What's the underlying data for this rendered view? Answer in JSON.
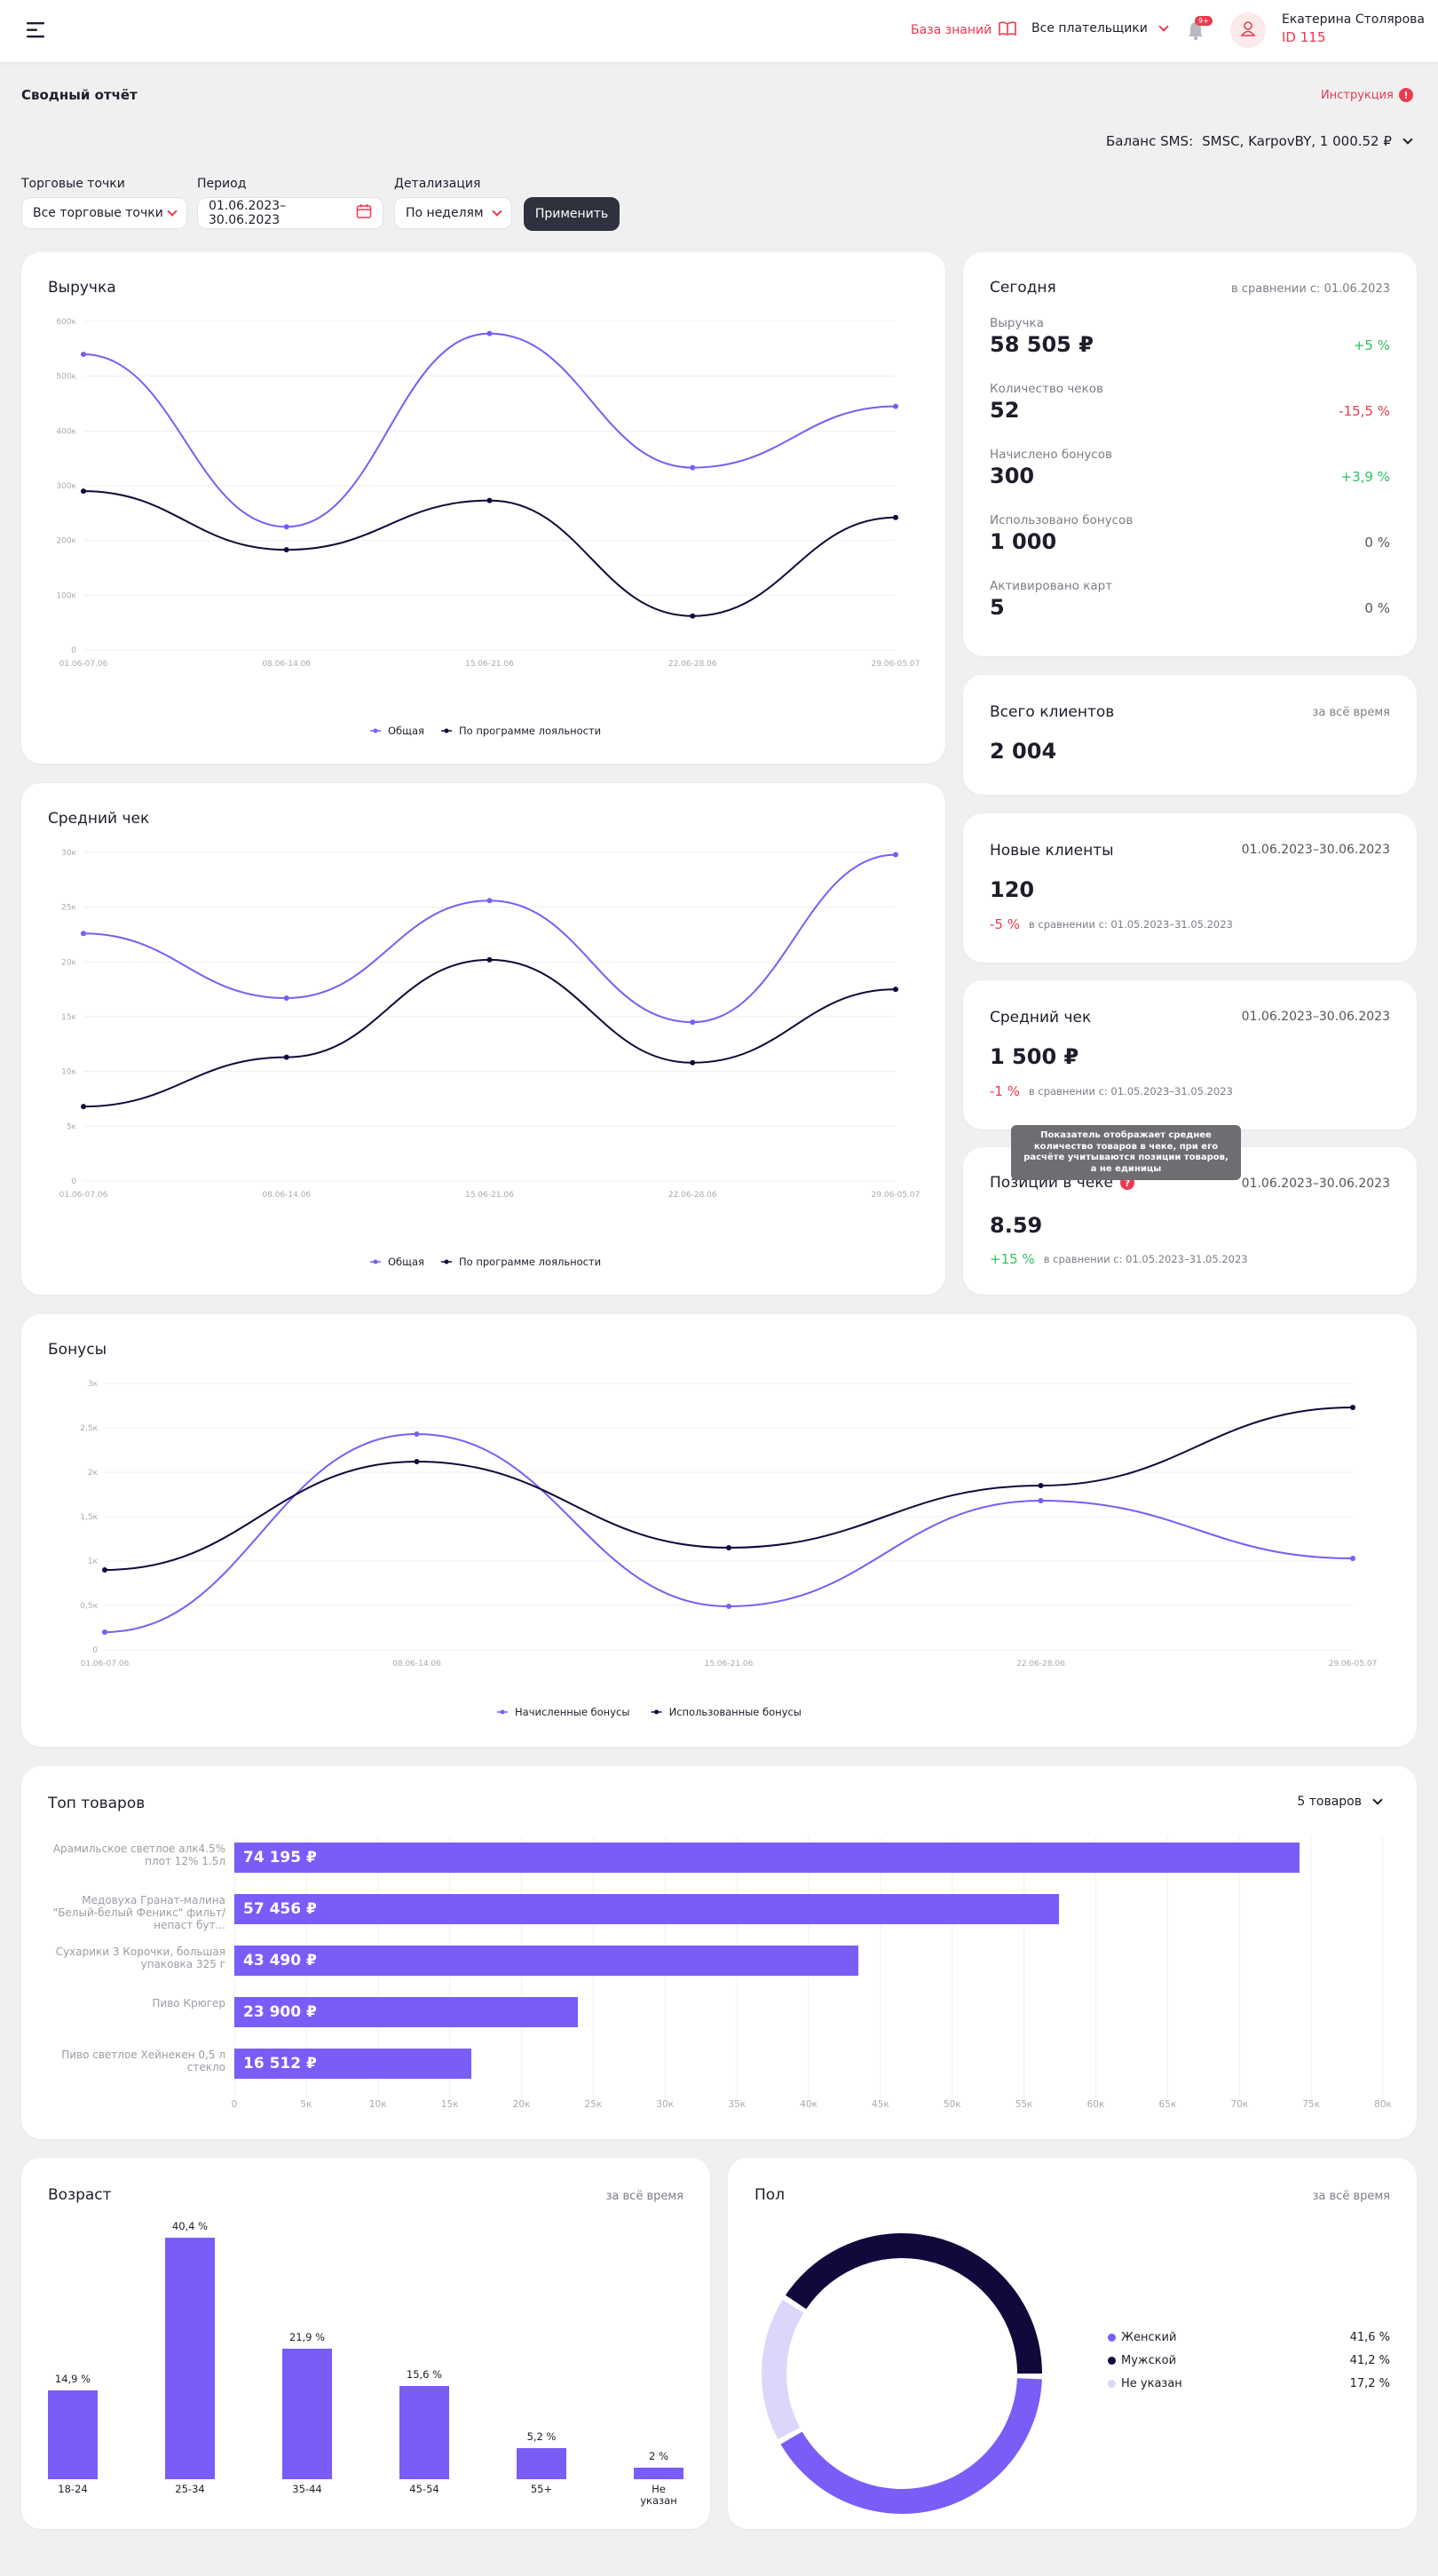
{
  "header": {
    "knowledge_base": "База знаний",
    "payers": "Все плательщики",
    "notif_badge": "9+",
    "user_name": "Екатерина Столярова",
    "user_id": "ID 115"
  },
  "page": {
    "title": "Сводный отчёт",
    "instruction": "Инструкция",
    "sms_label": "Баланс SMS:",
    "sms_value": "SMSC, KarpovBY, 1 000.52 ₽"
  },
  "filters": {
    "points_label": "Торговые точки",
    "points_value": "Все торговые точки",
    "period_label": "Период",
    "period_value": "01.06.2023–30.06.2023",
    "detail_label": "Детализация",
    "detail_value": "По неделям",
    "apply": "Применить"
  },
  "charts_text": {
    "revenue_title": "Выручка",
    "avg_title": "Средний чек",
    "bonus_title": "Бонусы",
    "legend_total": "Общая",
    "legend_loyalty": "По программе лояльности",
    "legend_accrued": "Начисленные бонусы",
    "legend_used": "Использованные бонусы"
  },
  "colors": {
    "accent": "#7a5cf7",
    "dark": "#11093b",
    "red": "#ea3a4e",
    "green": "#2fbf5f",
    "light": "#dcd6fb"
  },
  "today": {
    "title": "Сегодня",
    "compare": "в сравнении с: 01.06.2023",
    "stats": [
      {
        "label": "Выручка",
        "value": "58 505 ₽",
        "delta": "+5 %",
        "tone": "green"
      },
      {
        "label": "Количество чеков",
        "value": "52",
        "delta": "-15,5 %",
        "tone": "red"
      },
      {
        "label": "Начислено бонусов",
        "value": "300",
        "delta": "+3,9 %",
        "tone": "green"
      },
      {
        "label": "Использовано бонусов",
        "value": "1 000",
        "delta": "0 %",
        "tone": "muted"
      },
      {
        "label": "Активировано карт",
        "value": "5",
        "delta": "0 %",
        "tone": "muted"
      }
    ]
  },
  "clients_total": {
    "title": "Всего клиентов",
    "period": "за всё время",
    "value": "2 004"
  },
  "new_clients": {
    "title": "Новые клиенты",
    "period": "01.06.2023–30.06.2023",
    "value": "120",
    "delta": "-5 %",
    "compare": "в сравнении с: 01.05.2023–31.05.2023"
  },
  "avg_check": {
    "title": "Средний чек",
    "period": "01.06.2023–30.06.2023",
    "value": "1 500 ₽",
    "delta": "-1 %",
    "compare": "в сравнении с: 01.05.2023–31.05.2023"
  },
  "positions": {
    "title": "Позиций в чеке",
    "period": "01.06.2023–30.06.2023",
    "value": "8.59",
    "delta": "+15 %",
    "compare": "в сравнении с: 01.05.2023–31.05.2023",
    "tooltip": "Показатель отображает среднее количество товаров в чеке, при его расчёте учитываются позиции товаров, а не единицы"
  },
  "top_products": {
    "title": "Топ товаров",
    "selector": "5 товаров"
  },
  "age": {
    "title": "Возраст",
    "period": "за всё время"
  },
  "gender": {
    "title": "Пол",
    "period": "за всё время"
  },
  "chart_data": [
    {
      "type": "line",
      "title": "Выручка",
      "x": [
        "01.06-07.06",
        "08.06-14.06",
        "15.06-21.06",
        "22.06-28.06",
        "29.06-05.07"
      ],
      "yticks": [
        "0",
        "100к",
        "200к",
        "300к",
        "400к",
        "500к",
        "600к"
      ],
      "ylim": [
        0,
        600
      ],
      "series": [
        {
          "name": "Общая",
          "values": [
            540,
            225,
            578,
            333,
            445
          ]
        },
        {
          "name": "По программе лояльности",
          "values": [
            290,
            183,
            273,
            62,
            242
          ]
        }
      ]
    },
    {
      "type": "line",
      "title": "Средний чек",
      "x": [
        "01.06-07.06",
        "08.06-14.06",
        "15.06-21.06",
        "22.06-28.06",
        "29.06-05.07"
      ],
      "yticks": [
        "0",
        "5к",
        "10к",
        "15к",
        "20к",
        "25к",
        "30к"
      ],
      "ylim": [
        0,
        30
      ],
      "series": [
        {
          "name": "Общая",
          "values": [
            22.6,
            16.7,
            25.6,
            14.5,
            29.8
          ]
        },
        {
          "name": "По программе лояльности",
          "values": [
            6.8,
            11.3,
            20.2,
            10.8,
            17.5
          ]
        }
      ]
    },
    {
      "type": "line",
      "title": "Бонусы",
      "x": [
        "01.06-07.06",
        "08.06-14.06",
        "15.06-21.06",
        "22.06-28.06",
        "29.06-05.07"
      ],
      "yticks": [
        "0",
        "0,5к",
        "1к",
        "1,5к",
        "2к",
        "2,5к",
        "3к"
      ],
      "ylim": [
        0,
        3
      ],
      "series": [
        {
          "name": "Начисленные бонусы",
          "values": [
            0.2,
            2.43,
            0.49,
            1.68,
            1.03
          ]
        },
        {
          "name": "Использованные бонусы",
          "values": [
            0.9,
            2.12,
            1.15,
            1.85,
            2.73
          ]
        }
      ]
    },
    {
      "type": "bar",
      "title": "Топ товаров",
      "orientation": "horizontal",
      "categories": [
        "Арамильское светлое алк4.5% плот 12% 1.5л",
        "Медовуха Гранат-малина \"Белый-белый Феникс\" фильт/непаст бут...",
        "Сухарики 3 Корочки, большая упаковка 325 г",
        "Пиво Крюгер",
        "Пиво светлое Хейнекен 0,5 л стекло"
      ],
      "values": [
        74195,
        57456,
        43490,
        23900,
        16512
      ],
      "value_labels": [
        "74 195 ₽",
        "57 456 ₽",
        "43 490 ₽",
        "23 900 ₽",
        "16 512 ₽"
      ],
      "xticks": [
        "0",
        "5к",
        "10к",
        "15к",
        "20к",
        "25к",
        "30к",
        "35к",
        "40к",
        "45к",
        "50к",
        "55к",
        "60к",
        "65к",
        "70к",
        "75к",
        "80к"
      ],
      "xlim": [
        0,
        80000
      ]
    },
    {
      "type": "bar",
      "title": "Возраст",
      "categories": [
        "18-24",
        "25-34",
        "35-44",
        "45-54",
        "55+",
        "Не указан"
      ],
      "values": [
        14.9,
        40.4,
        21.9,
        15.6,
        5.2,
        2
      ],
      "value_labels": [
        "14,9 %",
        "40,4 %",
        "21,9 %",
        "15,6 %",
        "5,2 %",
        "2 %"
      ]
    },
    {
      "type": "pie",
      "title": "Пол",
      "categories": [
        "Женский",
        "Мужской",
        "Не указан"
      ],
      "values": [
        41.6,
        41.2,
        17.2
      ],
      "value_labels": [
        "41,6 %",
        "41,2 %",
        "17,2 %"
      ]
    }
  ]
}
